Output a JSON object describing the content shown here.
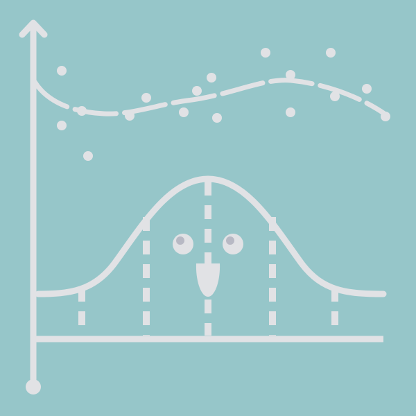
{
  "colors": {
    "background": "#96c6c9",
    "foreground": "#e1e2e5",
    "pupil": "#b7b9c4"
  },
  "icons": {
    "main": "bell-curve-chart-illustration",
    "axis_arrow": "arrow-up-icon",
    "face": "smiling-face-icon"
  }
}
